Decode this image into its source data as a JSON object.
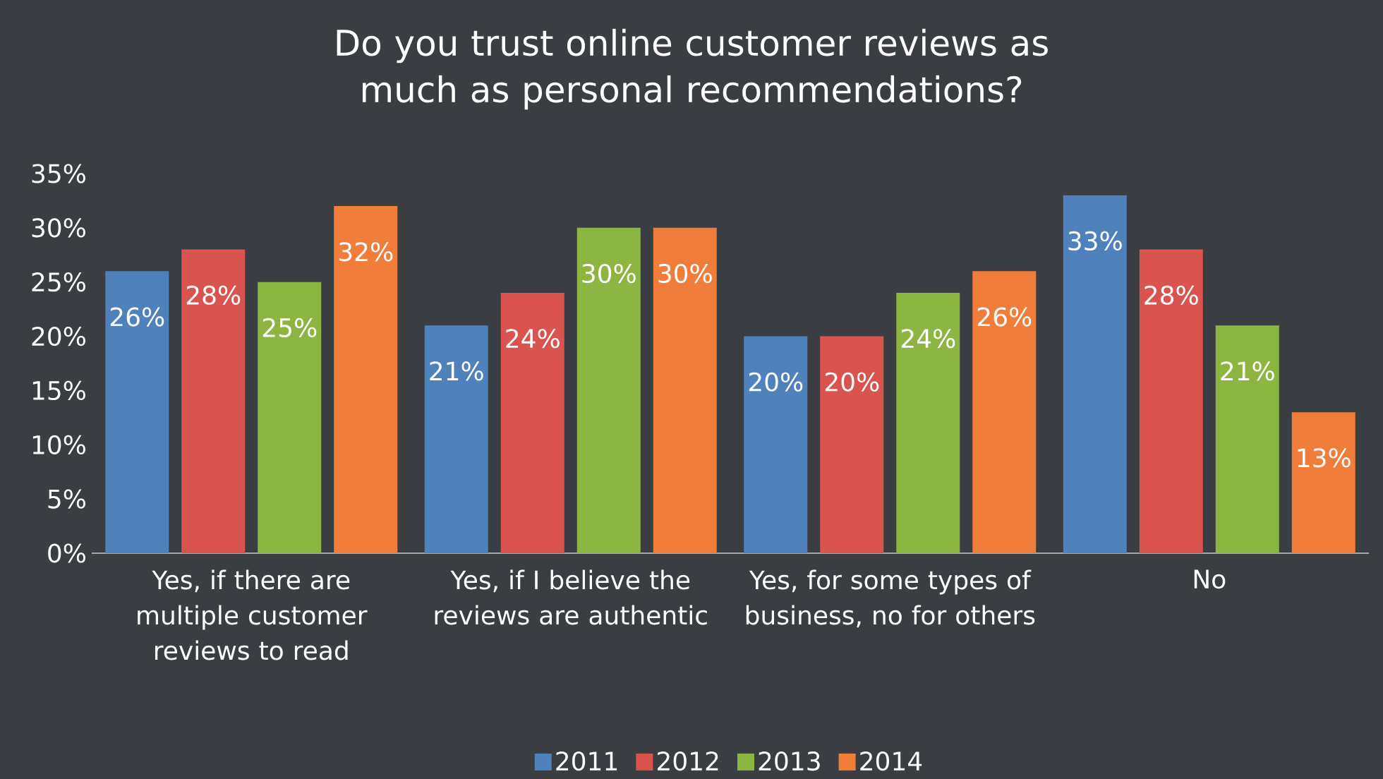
{
  "chart_data": {
    "type": "bar",
    "title": "Do you trust online customer reviews as much as personal recommendations?",
    "categories": [
      "Yes, if there are multiple customer reviews to read",
      "Yes, if I believe the reviews are authentic",
      "Yes, for some types of business, no for others",
      "No"
    ],
    "series": [
      {
        "name": "2011",
        "color": "#4f81bd",
        "values": [
          26,
          21,
          20,
          33
        ],
        "value_labels": [
          "26%",
          "21%",
          "20%",
          "33%"
        ]
      },
      {
        "name": "2012",
        "color": "#d9534f",
        "values": [
          28,
          24,
          20,
          28
        ],
        "value_labels": [
          "28%",
          "24%",
          "20%",
          "28%"
        ]
      },
      {
        "name": "2013",
        "color": "#8db542",
        "values": [
          25,
          30,
          24,
          21
        ],
        "value_labels": [
          "25%",
          "30%",
          "24%",
          "21%"
        ]
      },
      {
        "name": "2014",
        "color": "#f07e3a",
        "values": [
          32,
          30,
          26,
          13
        ],
        "value_labels": [
          "32%",
          "30%",
          "26%",
          "13%"
        ]
      }
    ],
    "ylim": [
      0,
      35
    ],
    "yticks": [
      {
        "value": 0,
        "label": "0%"
      },
      {
        "value": 5,
        "label": "5%"
      },
      {
        "value": 10,
        "label": "10%"
      },
      {
        "value": 15,
        "label": "15%"
      },
      {
        "value": 20,
        "label": "20%"
      },
      {
        "value": 25,
        "label": "25%"
      },
      {
        "value": 30,
        "label": "30%"
      },
      {
        "value": 35,
        "label": "35%"
      }
    ],
    "grid": false,
    "legend": "bottom"
  }
}
